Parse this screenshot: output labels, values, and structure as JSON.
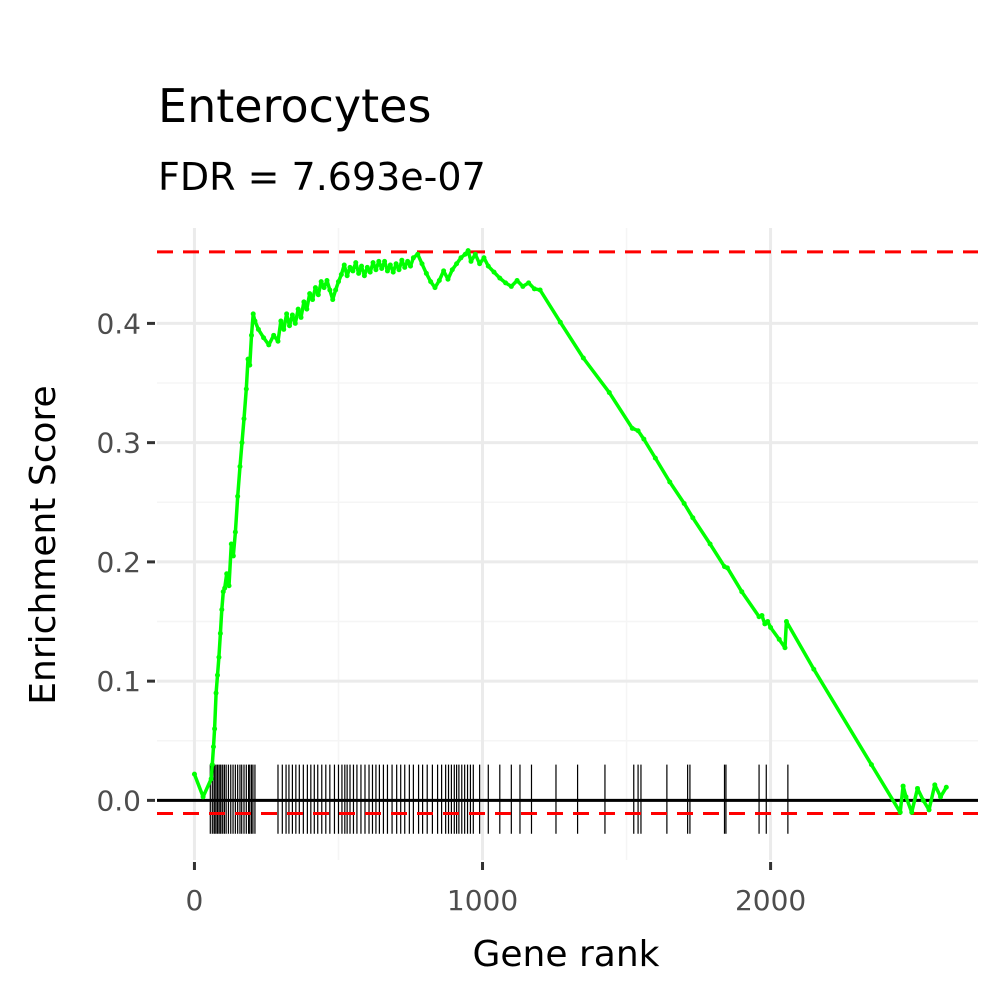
{
  "chart_data": {
    "type": "line",
    "title": "Enterocytes",
    "subtitle": "FDR = 7.693e-07",
    "xlabel": "Gene rank",
    "ylabel": "Enrichment Score",
    "xlim": [
      -130,
      2720
    ],
    "ylim": [
      -0.05,
      0.48
    ],
    "x_ticks": [
      0,
      1000,
      2000
    ],
    "x_tick_labels": [
      "0",
      "1000",
      "2000"
    ],
    "y_ticks": [
      0.0,
      0.1,
      0.2,
      0.3,
      0.4
    ],
    "y_tick_labels": [
      "0.0",
      "0.1",
      "0.2",
      "0.3",
      "0.4"
    ],
    "grid": true,
    "colors": {
      "curve": "#00ff00",
      "threshold": "#ff0000",
      "rug": "#000000",
      "zero_line": "#000000",
      "grid": "#ebebeb"
    },
    "max_es": 0.46,
    "min_es": -0.011,
    "series": [
      {
        "x": [
          0,
          30,
          58,
          62,
          66,
          70,
          75,
          80,
          85,
          90,
          95,
          100,
          105,
          112,
          120,
          128,
          135,
          142,
          150,
          158,
          165,
          172,
          180,
          186,
          192,
          198,
          204,
          210,
          222,
          240,
          258,
          275,
          290,
          300,
          310,
          320,
          330,
          340,
          350,
          360,
          370,
          380,
          390,
          400,
          410,
          420,
          430,
          440,
          450,
          460,
          470,
          480,
          490,
          500,
          510,
          520,
          530,
          540,
          550,
          560,
          570,
          580,
          590,
          600,
          610,
          620,
          630,
          640,
          650,
          660,
          670,
          680,
          690,
          700,
          710,
          720,
          730,
          740,
          750,
          760,
          775,
          790,
          805,
          820,
          835,
          850,
          865,
          880,
          895,
          910,
          925,
          940,
          950,
          960,
          975,
          990,
          1005,
          1020,
          1040,
          1060,
          1080,
          1100,
          1120,
          1140,
          1160,
          1180,
          1200,
          1270,
          1350,
          1440,
          1520,
          1540,
          1560,
          1600,
          1650,
          1700,
          1730,
          1790,
          1840,
          1850,
          1900,
          1960,
          1970,
          1980,
          1990,
          2000,
          2030,
          2050,
          2055,
          2150,
          2350,
          2450,
          2460,
          2470,
          2490,
          2510,
          2530,
          2550,
          2570,
          2590,
          2610
        ],
        "y": [
          0.022,
          0.003,
          0.018,
          0.03,
          0.045,
          0.06,
          0.09,
          0.105,
          0.12,
          0.14,
          0.16,
          0.175,
          0.178,
          0.19,
          0.18,
          0.215,
          0.205,
          0.225,
          0.255,
          0.28,
          0.3,
          0.32,
          0.345,
          0.37,
          0.365,
          0.39,
          0.408,
          0.402,
          0.395,
          0.388,
          0.382,
          0.39,
          0.385,
          0.402,
          0.395,
          0.408,
          0.398,
          0.407,
          0.4,
          0.412,
          0.405,
          0.418,
          0.412,
          0.425,
          0.42,
          0.43,
          0.424,
          0.435,
          0.43,
          0.436,
          0.428,
          0.42,
          0.428,
          0.435,
          0.441,
          0.449,
          0.44,
          0.447,
          0.444,
          0.451,
          0.442,
          0.448,
          0.44,
          0.447,
          0.443,
          0.451,
          0.445,
          0.452,
          0.446,
          0.452,
          0.444,
          0.449,
          0.443,
          0.45,
          0.445,
          0.453,
          0.447,
          0.452,
          0.448,
          0.455,
          0.458,
          0.45,
          0.442,
          0.435,
          0.43,
          0.436,
          0.444,
          0.437,
          0.445,
          0.45,
          0.455,
          0.458,
          0.461,
          0.452,
          0.458,
          0.45,
          0.455,
          0.448,
          0.443,
          0.438,
          0.434,
          0.431,
          0.436,
          0.431,
          0.434,
          0.429,
          0.428,
          0.401,
          0.371,
          0.342,
          0.312,
          0.31,
          0.303,
          0.287,
          0.267,
          0.249,
          0.237,
          0.215,
          0.196,
          0.195,
          0.175,
          0.154,
          0.155,
          0.148,
          0.15,
          0.145,
          0.135,
          0.128,
          0.15,
          0.11,
          0.03,
          -0.01,
          0.012,
          0.003,
          -0.01,
          0.01,
          0.0,
          -0.008,
          0.013,
          0.003,
          0.011
        ]
      }
    ],
    "rug_x": [
      55,
      62,
      68,
      72,
      78,
      82,
      88,
      92,
      98,
      104,
      110,
      118,
      126,
      134,
      142,
      150,
      158,
      164,
      172,
      180,
      188,
      192,
      198,
      203,
      210,
      290,
      305,
      318,
      328,
      340,
      352,
      364,
      378,
      392,
      404,
      416,
      428,
      442,
      456,
      470,
      486,
      500,
      512,
      522,
      530,
      540,
      552,
      564,
      578,
      592,
      606,
      618,
      630,
      642,
      656,
      670,
      686,
      702,
      716,
      730,
      746,
      760,
      778,
      792,
      808,
      826,
      844,
      858,
      872,
      882,
      892,
      902,
      910,
      918,
      928,
      938,
      948,
      958,
      968,
      990,
      1020,
      1060,
      1100,
      1130,
      1170,
      1255,
      1330,
      1425,
      1525,
      1540,
      1550,
      1640,
      1712,
      1720,
      1840,
      1845,
      1960,
      1985,
      2060
    ]
  }
}
